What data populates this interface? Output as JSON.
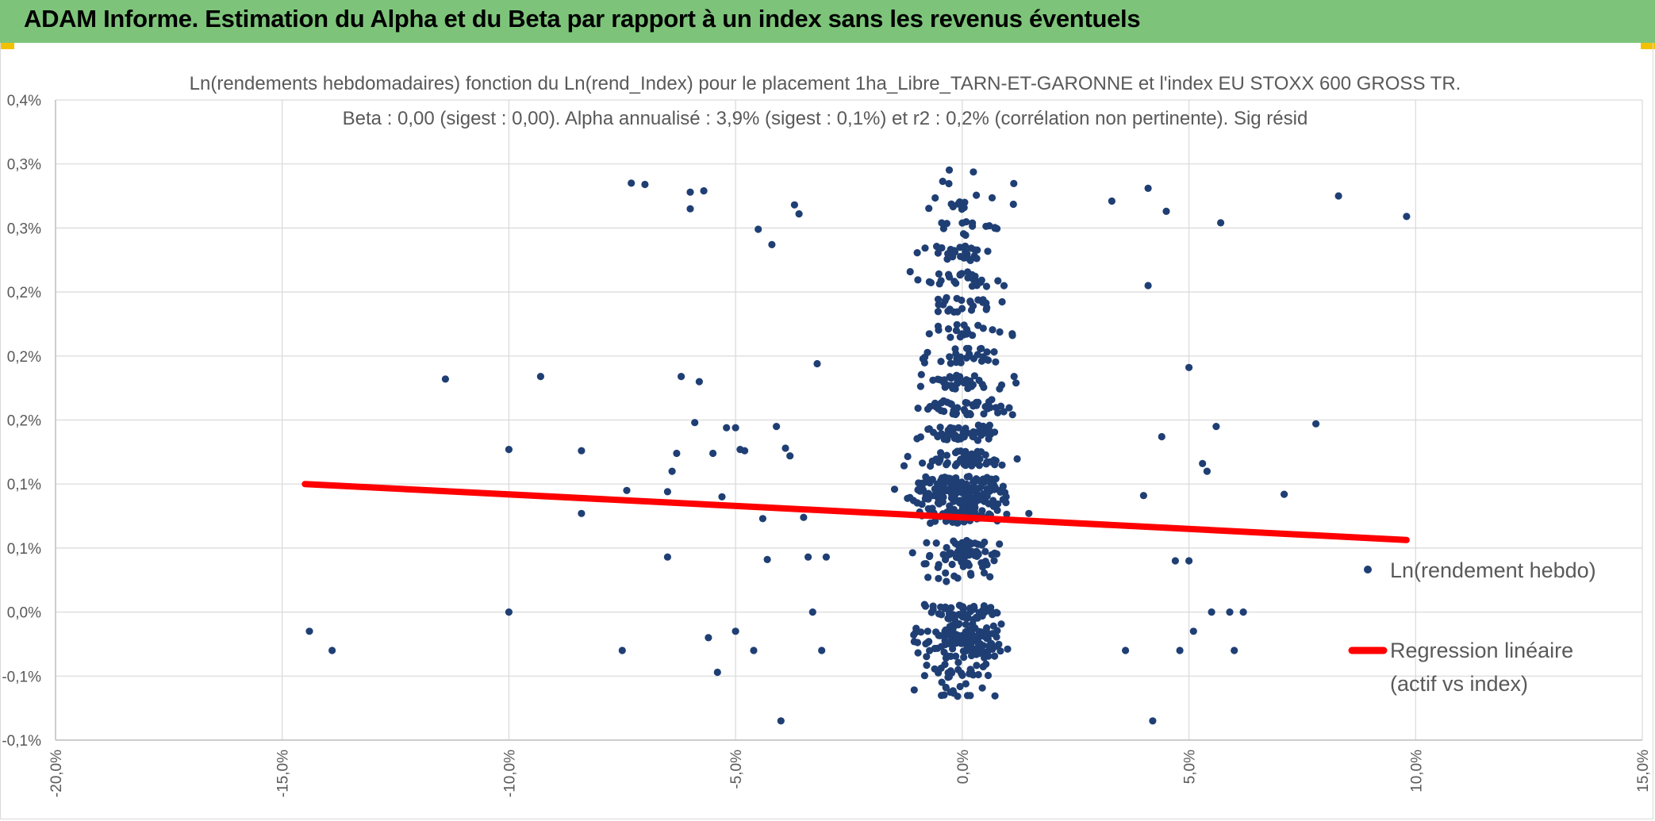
{
  "header": {
    "title": "ADAM Informe. Estimation du Alpha et du Beta par rapport à un index sans les revenus éventuels"
  },
  "colors": {
    "header_bg": "#7dc47a",
    "accent": "#f2c200",
    "points": "#1f3f74",
    "regression": "#ff0000",
    "grid": "#d9d9d9",
    "text": "#595959"
  },
  "chart_data": {
    "type": "scatter",
    "title_line1": "Ln(rendements hebdomadaires) fonction du Ln(rend_Index) pour le placement 1ha_Libre_TARN-ET-GARONNE et l'index EU STOXX 600 GROSS TR.",
    "title_line2": "Beta : 0,00 (sigest : 0,00). Alpha annualisé : 3,9% (sigest : 0,1%) et r2 : 0,2% (corrélation non pertinente). Sig résid",
    "xlim": [
      -0.2,
      0.15
    ],
    "ylim": [
      -0.001,
      0.004
    ],
    "x_ticks": [
      -0.2,
      -0.15,
      -0.1,
      -0.05,
      0.0,
      0.05,
      0.1,
      0.15
    ],
    "x_tick_labels": [
      "-20,0%",
      "-15,0%",
      "-10,0%",
      "-5,0%",
      "0,0%",
      "5,0%",
      "10,0%",
      "15,0%"
    ],
    "y_ticks": [
      -0.001,
      -0.0005,
      0.0,
      0.0005,
      0.001,
      0.0015,
      0.002,
      0.0025,
      0.003,
      0.0035,
      0.004
    ],
    "y_tick_labels": [
      "-0,1%",
      "-0,1%",
      "0,0%",
      "0,1%",
      "0,1%",
      "0,2%",
      "0,2%",
      "0,2%",
      "0,3%",
      "0,3%",
      "0,4%"
    ],
    "legend": [
      {
        "name": "Ln(rendement hebdo)",
        "marker": "dot"
      },
      {
        "name": "Regression linéaire (actif vs index)",
        "line1": "Regression linéaire",
        "line2": "(actif vs index)",
        "marker": "line"
      }
    ],
    "regression": {
      "x": [
        -0.145,
        0.098
      ],
      "y": [
        0.001,
        0.000563
      ]
    },
    "series_manual": [
      [
        -0.144,
        -0.00015
      ],
      [
        -0.139,
        -0.0003
      ],
      [
        -0.114,
        0.00182
      ],
      [
        -0.1,
        0.0
      ],
      [
        -0.1,
        0.00127
      ],
      [
        -0.093,
        0.00184
      ],
      [
        -0.084,
        0.00077
      ],
      [
        -0.084,
        0.00126
      ],
      [
        -0.075,
        -0.0003
      ],
      [
        -0.074,
        0.00095
      ],
      [
        -0.073,
        0.00335
      ],
      [
        -0.07,
        0.00334
      ],
      [
        -0.065,
        0.00094
      ],
      [
        -0.065,
        0.00043
      ],
      [
        -0.064,
        0.0011
      ],
      [
        -0.063,
        0.00124
      ],
      [
        -0.062,
        0.00184
      ],
      [
        -0.06,
        0.00328
      ],
      [
        -0.06,
        0.00315
      ],
      [
        -0.059,
        0.00148
      ],
      [
        -0.058,
        0.0018
      ],
      [
        -0.057,
        0.00329
      ],
      [
        -0.056,
        -0.0002
      ],
      [
        -0.055,
        0.00124
      ],
      [
        -0.054,
        -0.00047
      ],
      [
        -0.053,
        0.0009
      ],
      [
        -0.052,
        0.00144
      ],
      [
        -0.05,
        -0.00015
      ],
      [
        -0.05,
        0.00144
      ],
      [
        -0.049,
        0.00127
      ],
      [
        -0.048,
        0.00126
      ],
      [
        -0.046,
        -0.0003
      ],
      [
        -0.045,
        0.00299
      ],
      [
        -0.044,
        0.00073
      ],
      [
        -0.043,
        0.00041
      ],
      [
        -0.042,
        0.00287
      ],
      [
        -0.041,
        0.00145
      ],
      [
        -0.04,
        -0.00085
      ],
      [
        -0.039,
        0.00128
      ],
      [
        -0.038,
        0.00122
      ],
      [
        -0.037,
        0.00318
      ],
      [
        -0.036,
        0.00311
      ],
      [
        -0.035,
        0.00074
      ],
      [
        -0.034,
        0.00043
      ],
      [
        -0.033,
        0.0
      ],
      [
        -0.032,
        0.00194
      ],
      [
        -0.031,
        -0.0003
      ],
      [
        -0.03,
        0.00043
      ],
      [
        0.033,
        0.00321
      ],
      [
        0.036,
        -0.0003
      ],
      [
        0.041,
        0.00331
      ],
      [
        0.041,
        0.00255
      ],
      [
        0.04,
        0.00091
      ],
      [
        0.042,
        -0.00085
      ],
      [
        0.044,
        0.00137
      ],
      [
        0.045,
        0.00313
      ],
      [
        0.047,
        0.0004
      ],
      [
        0.048,
        -0.0003
      ],
      [
        0.05,
        0.00191
      ],
      [
        0.05,
        0.0004
      ],
      [
        0.051,
        -0.00015
      ],
      [
        0.053,
        0.00116
      ],
      [
        0.054,
        0.0011
      ],
      [
        0.055,
        0.0
      ],
      [
        0.056,
        0.00145
      ],
      [
        0.057,
        0.00304
      ],
      [
        0.059,
        0.0
      ],
      [
        0.06,
        -0.0003
      ],
      [
        0.062,
        0.0
      ],
      [
        0.071,
        0.00092
      ],
      [
        0.078,
        0.00147
      ],
      [
        0.083,
        0.00325
      ],
      [
        0.098,
        0.00309
      ]
    ],
    "y_levels": [
      -0.0006,
      -0.00045,
      -0.0003,
      -0.0002,
      -0.00015,
      0.0,
      0.00025,
      0.0004,
      0.0005,
      0.00075,
      0.0008,
      0.0009,
      0.001,
      0.0012,
      0.0014,
      0.0016,
      0.0018,
      0.002,
      0.0022,
      0.0024,
      0.0026,
      0.0028,
      0.003,
      0.0032,
      0.0034
    ]
  }
}
